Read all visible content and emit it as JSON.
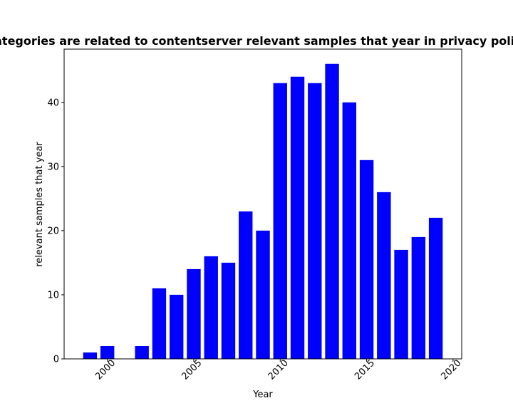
{
  "chart_data": {
    "type": "bar",
    "title": "Categories are related to contentserver relevant samples that year in privacy policies",
    "xlabel": "Year",
    "ylabel": "relevant samples that year",
    "x": [
      1999,
      2000,
      2002,
      2003,
      2004,
      2005,
      2006,
      2007,
      2008,
      2009,
      2010,
      2011,
      2012,
      2013,
      2014,
      2015,
      2016,
      2017,
      2018,
      2019
    ],
    "values": [
      1,
      2,
      2,
      11,
      10,
      14,
      16,
      15,
      23,
      20,
      43,
      44,
      43,
      46,
      40,
      31,
      26,
      17,
      19,
      22
    ],
    "xlim": [
      1997.5,
      2020.5
    ],
    "ylim": [
      0,
      48.3
    ],
    "xticks": [
      2000,
      2005,
      2010,
      2015,
      2020
    ],
    "xtick_labels": [
      "2000",
      "2005",
      "2010",
      "2015",
      "2020"
    ],
    "yticks": [
      0,
      10,
      20,
      30,
      40
    ],
    "ytick_labels": [
      "0",
      "10",
      "20",
      "30",
      "40"
    ],
    "bar_color": "#0000ff",
    "grid": false,
    "legend": false
  }
}
